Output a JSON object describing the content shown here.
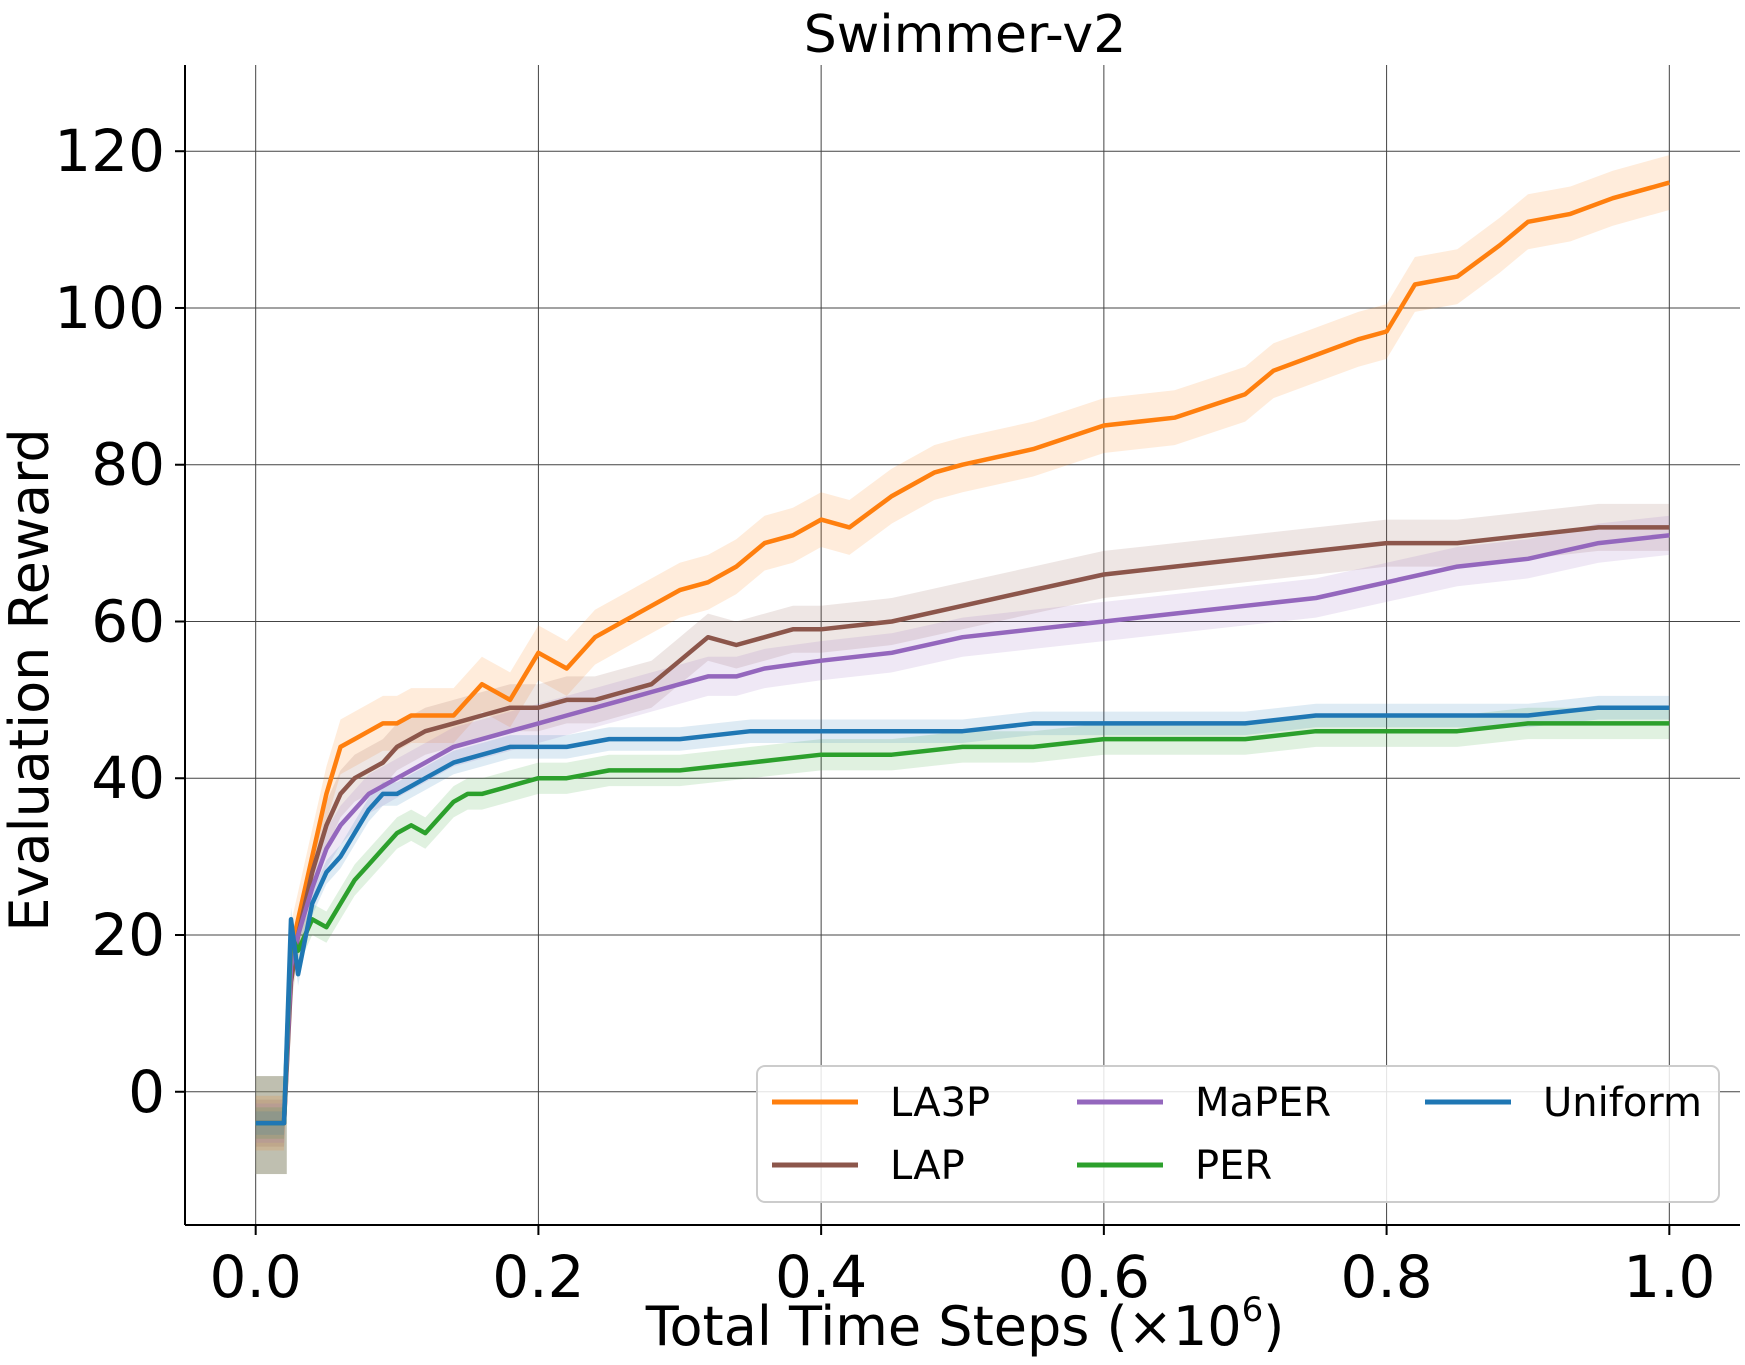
{
  "chart_data": {
    "type": "line",
    "title": "Swimmer-v2",
    "xlabel": "Total Time Steps (×10",
    "xlabel_exponent": "6",
    "xlabel_suffix": ")",
    "ylabel": "Evaluation Reward",
    "xlim": [
      -0.05,
      1.05
    ],
    "ylim": [
      -17,
      131
    ],
    "xticks": [
      0.0,
      0.2,
      0.4,
      0.6,
      0.8,
      1.0
    ],
    "xtick_labels": [
      "0.0",
      "0.2",
      "0.4",
      "0.6",
      "0.8",
      "1.0"
    ],
    "yticks": [
      0,
      20,
      40,
      60,
      80,
      100,
      120
    ],
    "ytick_labels": [
      "0",
      "20",
      "40",
      "60",
      "80",
      "100",
      "120"
    ],
    "grid": true,
    "legend_position": "lower-right",
    "legend_columns": 3,
    "series": [
      {
        "name": "LA3P",
        "color": "#ff7f0e",
        "x": [
          0.0,
          0.02,
          0.025,
          0.03,
          0.04,
          0.05,
          0.06,
          0.07,
          0.08,
          0.09,
          0.1,
          0.11,
          0.12,
          0.14,
          0.16,
          0.18,
          0.2,
          0.22,
          0.24,
          0.26,
          0.28,
          0.3,
          0.32,
          0.34,
          0.36,
          0.38,
          0.4,
          0.42,
          0.45,
          0.48,
          0.5,
          0.55,
          0.6,
          0.65,
          0.7,
          0.72,
          0.75,
          0.78,
          0.8,
          0.82,
          0.85,
          0.88,
          0.9,
          0.93,
          0.96,
          1.0
        ],
        "y": [
          -4,
          -4,
          18,
          22,
          30,
          38,
          44,
          45,
          46,
          47,
          47,
          48,
          48,
          48,
          52,
          50,
          56,
          54,
          58,
          60,
          62,
          64,
          65,
          67,
          70,
          71,
          73,
          72,
          76,
          79,
          80,
          82,
          85,
          86,
          89,
          92,
          94,
          96,
          97,
          103,
          104,
          108,
          111,
          112,
          114,
          116
        ],
        "band": 3.5
      },
      {
        "name": "LAP",
        "color": "#8c564b",
        "x": [
          0.0,
          0.02,
          0.025,
          0.03,
          0.04,
          0.05,
          0.06,
          0.07,
          0.08,
          0.09,
          0.1,
          0.12,
          0.14,
          0.16,
          0.18,
          0.2,
          0.22,
          0.24,
          0.26,
          0.28,
          0.3,
          0.32,
          0.34,
          0.36,
          0.38,
          0.4,
          0.45,
          0.5,
          0.55,
          0.6,
          0.65,
          0.7,
          0.75,
          0.8,
          0.85,
          0.9,
          0.95,
          1.0
        ],
        "y": [
          -4,
          -4,
          14,
          20,
          28,
          34,
          38,
          40,
          41,
          42,
          44,
          46,
          47,
          48,
          49,
          49,
          50,
          50,
          51,
          52,
          55,
          58,
          57,
          58,
          59,
          59,
          60,
          62,
          64,
          66,
          67,
          68,
          69,
          70,
          70,
          71,
          72,
          72
        ],
        "band": 3
      },
      {
        "name": "MaPER",
        "color": "#9467bd",
        "x": [
          0.0,
          0.02,
          0.025,
          0.03,
          0.04,
          0.05,
          0.06,
          0.07,
          0.08,
          0.09,
          0.1,
          0.12,
          0.14,
          0.16,
          0.18,
          0.2,
          0.22,
          0.24,
          0.26,
          0.28,
          0.3,
          0.32,
          0.34,
          0.36,
          0.4,
          0.45,
          0.5,
          0.55,
          0.6,
          0.65,
          0.7,
          0.75,
          0.8,
          0.85,
          0.9,
          0.95,
          1.0
        ],
        "y": [
          -4,
          -4,
          16,
          20,
          26,
          31,
          34,
          36,
          38,
          39,
          40,
          42,
          44,
          45,
          46,
          47,
          48,
          49,
          50,
          51,
          52,
          53,
          53,
          54,
          55,
          56,
          58,
          59,
          60,
          61,
          62,
          63,
          65,
          67,
          68,
          70,
          71
        ],
        "band": 2.5
      },
      {
        "name": "PER",
        "color": "#2ca02c",
        "x": [
          0.0,
          0.02,
          0.025,
          0.03,
          0.04,
          0.05,
          0.06,
          0.07,
          0.08,
          0.09,
          0.1,
          0.11,
          0.12,
          0.13,
          0.14,
          0.15,
          0.16,
          0.18,
          0.2,
          0.22,
          0.25,
          0.28,
          0.3,
          0.35,
          0.4,
          0.45,
          0.5,
          0.55,
          0.6,
          0.65,
          0.7,
          0.75,
          0.8,
          0.85,
          0.9,
          0.95,
          1.0
        ],
        "y": [
          -4,
          -4,
          20,
          18,
          22,
          21,
          24,
          27,
          29,
          31,
          33,
          34,
          33,
          35,
          37,
          38,
          38,
          39,
          40,
          40,
          41,
          41,
          41,
          42,
          43,
          43,
          44,
          44,
          45,
          45,
          45,
          46,
          46,
          46,
          47,
          47,
          47
        ],
        "band": 2
      },
      {
        "name": "Uniform",
        "color": "#1f77b4",
        "x": [
          0.0,
          0.02,
          0.025,
          0.03,
          0.04,
          0.05,
          0.06,
          0.07,
          0.08,
          0.09,
          0.1,
          0.11,
          0.12,
          0.14,
          0.16,
          0.18,
          0.2,
          0.22,
          0.25,
          0.3,
          0.35,
          0.4,
          0.45,
          0.5,
          0.55,
          0.6,
          0.65,
          0.7,
          0.75,
          0.8,
          0.85,
          0.9,
          0.95,
          1.0
        ],
        "y": [
          -4,
          -4,
          22,
          15,
          24,
          28,
          30,
          33,
          36,
          38,
          38,
          39,
          40,
          42,
          43,
          44,
          44,
          44,
          45,
          45,
          46,
          46,
          46,
          46,
          47,
          47,
          47,
          47,
          48,
          48,
          48,
          48,
          49,
          49
        ],
        "band": 1.5
      }
    ]
  }
}
